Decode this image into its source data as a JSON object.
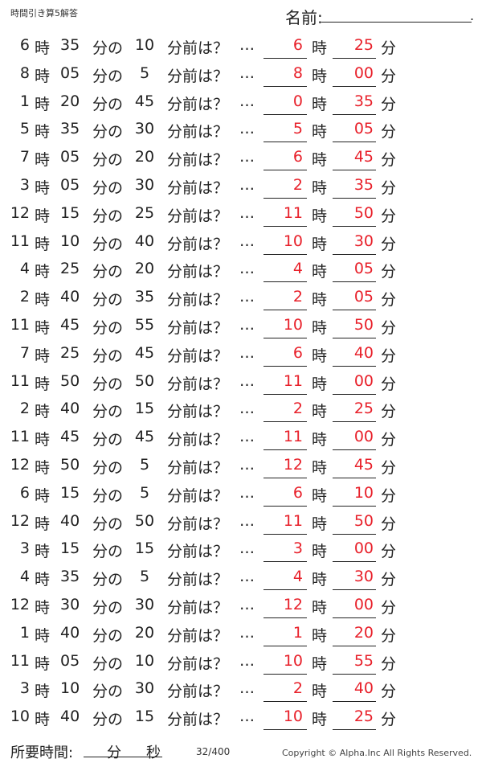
{
  "header": {
    "title": "時間引き算5解答",
    "name_label": "名前:",
    "name_end": "."
  },
  "labels": {
    "hour": "時",
    "minute_of": "分の",
    "minutes_before": "分前は？",
    "ellipsis": "…",
    "minute": "分"
  },
  "answer_color": "#e8202a",
  "problems": [
    {
      "h": "6",
      "m": "35",
      "b": "10",
      "ah": "6",
      "am": "25"
    },
    {
      "h": "8",
      "m": "05",
      "b": "5",
      "ah": "8",
      "am": "00"
    },
    {
      "h": "1",
      "m": "20",
      "b": "45",
      "ah": "0",
      "am": "35"
    },
    {
      "h": "5",
      "m": "35",
      "b": "30",
      "ah": "5",
      "am": "05"
    },
    {
      "h": "7",
      "m": "05",
      "b": "20",
      "ah": "6",
      "am": "45"
    },
    {
      "h": "3",
      "m": "05",
      "b": "30",
      "ah": "2",
      "am": "35"
    },
    {
      "h": "12",
      "m": "15",
      "b": "25",
      "ah": "11",
      "am": "50"
    },
    {
      "h": "11",
      "m": "10",
      "b": "40",
      "ah": "10",
      "am": "30"
    },
    {
      "h": "4",
      "m": "25",
      "b": "20",
      "ah": "4",
      "am": "05"
    },
    {
      "h": "2",
      "m": "40",
      "b": "35",
      "ah": "2",
      "am": "05"
    },
    {
      "h": "11",
      "m": "45",
      "b": "55",
      "ah": "10",
      "am": "50"
    },
    {
      "h": "7",
      "m": "25",
      "b": "45",
      "ah": "6",
      "am": "40"
    },
    {
      "h": "11",
      "m": "50",
      "b": "50",
      "ah": "11",
      "am": "00"
    },
    {
      "h": "2",
      "m": "40",
      "b": "15",
      "ah": "2",
      "am": "25"
    },
    {
      "h": "11",
      "m": "45",
      "b": "45",
      "ah": "11",
      "am": "00"
    },
    {
      "h": "12",
      "m": "50",
      "b": "5",
      "ah": "12",
      "am": "45"
    },
    {
      "h": "6",
      "m": "15",
      "b": "5",
      "ah": "6",
      "am": "10"
    },
    {
      "h": "12",
      "m": "40",
      "b": "50",
      "ah": "11",
      "am": "50"
    },
    {
      "h": "3",
      "m": "15",
      "b": "15",
      "ah": "3",
      "am": "00"
    },
    {
      "h": "4",
      "m": "35",
      "b": "5",
      "ah": "4",
      "am": "30"
    },
    {
      "h": "12",
      "m": "30",
      "b": "30",
      "ah": "12",
      "am": "00"
    },
    {
      "h": "1",
      "m": "40",
      "b": "20",
      "ah": "1",
      "am": "20"
    },
    {
      "h": "11",
      "m": "05",
      "b": "10",
      "ah": "10",
      "am": "55"
    },
    {
      "h": "3",
      "m": "10",
      "b": "30",
      "ah": "2",
      "am": "40"
    },
    {
      "h": "10",
      "m": "40",
      "b": "15",
      "ah": "10",
      "am": "25"
    }
  ],
  "footer": {
    "time_label": "所要時間:",
    "min": "分",
    "sec": "秒",
    "page": "32/400",
    "copyright": "Copyright ©  Alpha.Inc All Rights Reserved."
  }
}
